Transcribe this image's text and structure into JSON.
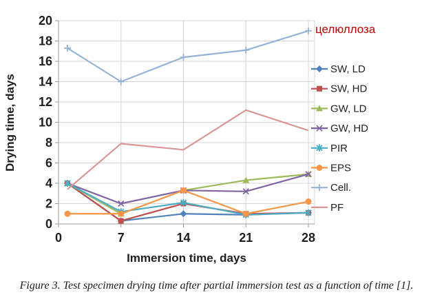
{
  "figure": {
    "caption": "Figure 3. Test specimen drying time after partial immersion test as a function of time [1].",
    "annotation": {
      "text": "целюллоза",
      "color": "#C00000"
    }
  },
  "chart_data": {
    "type": "line",
    "title": "",
    "xlabel": "Immersion time, days",
    "ylabel": "Drying time, days",
    "x": [
      1,
      7,
      14,
      21,
      28
    ],
    "xticks": [
      0,
      7,
      14,
      21,
      28
    ],
    "yticks": [
      0,
      2,
      4,
      6,
      8,
      10,
      12,
      14,
      16,
      18,
      20
    ],
    "xlim": [
      0,
      28.7
    ],
    "ylim": [
      0,
      20
    ],
    "grid": true,
    "legend_position": "right",
    "axis_color": "#9B9B9B",
    "grid_color": "#D6D6D6",
    "label_color": "#1f1f1f",
    "series": [
      {
        "name": "SW, LD",
        "color": "#4F81BD",
        "marker": "diamond",
        "values": [
          4.0,
          0.3,
          1.0,
          0.9,
          1.1
        ]
      },
      {
        "name": "SW, HD",
        "color": "#C0504D",
        "marker": "square",
        "values": [
          4.0,
          0.3,
          2.0,
          1.0,
          1.1
        ]
      },
      {
        "name": "GW, LD",
        "color": "#9BBB59",
        "marker": "triangle",
        "values": [
          4.0,
          1.0,
          3.3,
          4.3,
          4.9
        ]
      },
      {
        "name": "GW, HD",
        "color": "#8064A2",
        "marker": "x",
        "values": [
          4.0,
          2.0,
          3.3,
          3.2,
          4.9
        ]
      },
      {
        "name": "PIR",
        "color": "#4BACC6",
        "marker": "asterisk",
        "values": [
          4.0,
          1.2,
          2.1,
          0.9,
          1.1
        ]
      },
      {
        "name": "EPS",
        "color": "#F79646",
        "marker": "circle",
        "values": [
          1.0,
          1.0,
          3.3,
          1.0,
          2.2
        ]
      },
      {
        "name": "Cell.",
        "color": "#95B3D7",
        "marker": "plus",
        "values": [
          17.3,
          14.0,
          16.4,
          17.1,
          19.0
        ]
      },
      {
        "name": "PF",
        "color": "#D99694",
        "marker": "none",
        "values": [
          3.4,
          7.9,
          7.3,
          11.2,
          9.2
        ]
      }
    ]
  }
}
